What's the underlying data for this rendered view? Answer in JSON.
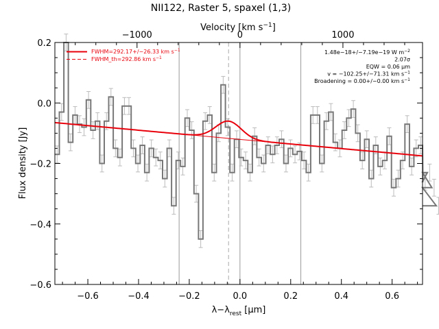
{
  "chart_data": {
    "type": "line",
    "title": "NII122, Raster 5, spaxel (1,3)",
    "xlabel": "λ−λ",
    "xlabel_sub": "rest",
    "xlabel_unit": " [μm]",
    "ylabel": "Flux density [Jy]",
    "top_axis_label": "Velocity [km s",
    "top_axis_label_sup": "−1",
    "top_axis_label_end": "]",
    "xlim": [
      -0.73,
      0.72
    ],
    "ylim": [
      -0.6,
      0.2
    ],
    "x_ticks": [
      -0.6,
      -0.4,
      -0.2,
      0.0,
      0.2,
      0.4,
      0.6
    ],
    "x_tick_labels": [
      "−0.6",
      "−0.4",
      "−0.2",
      "0.0",
      "0.2",
      "0.4",
      "0.6"
    ],
    "y_ticks": [
      -0.6,
      -0.4,
      -0.2,
      0.0,
      0.2
    ],
    "y_tick_labels": [
      "−0.6",
      "−0.4",
      "−0.2",
      "0.0",
      "0.2"
    ],
    "top_ticks_um": [
      -0.406,
      0.0,
      0.406
    ],
    "top_tick_labels": [
      "−1000",
      "0",
      "1000"
    ],
    "vertical_lines": [
      {
        "x": -0.24,
        "style": "solid",
        "color": "#999999"
      },
      {
        "x": -0.045,
        "style": "dashed",
        "color": "#aaaaaa"
      },
      {
        "x": 0.0,
        "style": "solid",
        "color": "#999999"
      },
      {
        "x": 0.24,
        "style": "solid",
        "color": "#999999"
      }
    ],
    "series": [
      {
        "name": "",
        "style": "steps",
        "color": "#777777",
        "x_start": -0.73,
        "x_step": 0.0177,
        "values": [
          -0.17,
          -0.03,
          0.2,
          -0.13,
          -0.04,
          -0.07,
          -0.08,
          0.01,
          -0.09,
          -0.06,
          -0.2,
          -0.06,
          0.02,
          -0.15,
          -0.18,
          -0.01,
          -0.01,
          -0.15,
          -0.2,
          -0.14,
          -0.23,
          -0.15,
          -0.18,
          -0.19,
          -0.25,
          -0.15,
          -0.34,
          -0.19,
          -0.21,
          -0.05,
          -0.09,
          -0.3,
          -0.45,
          -0.06,
          -0.04,
          -0.23,
          -0.1,
          0.06,
          -0.08,
          -0.23,
          -0.12,
          -0.18,
          -0.19,
          -0.23,
          -0.11,
          -0.18,
          -0.2,
          -0.14,
          -0.17,
          -0.14,
          -0.12,
          -0.2,
          -0.15,
          -0.17,
          -0.16,
          -0.19,
          -0.23,
          -0.04,
          -0.04,
          -0.2,
          -0.06,
          -0.03,
          -0.13,
          -0.15,
          -0.09,
          -0.05,
          -0.02,
          -0.1,
          -0.19,
          -0.12,
          -0.25,
          -0.14,
          -0.21,
          -0.19,
          -0.11,
          -0.28,
          -0.25,
          -0.19,
          -0.07,
          -0.21,
          -0.15,
          -0.14,
          -0.26,
          -0.23,
          -0.28,
          -0.34
        ],
        "error": 0.028
      },
      {
        "name": "FWHM=292.17+/−26.33 km s",
        "name_sup": "−1",
        "style": "solid",
        "color": "#e8000b",
        "baseline_start": -0.065,
        "baseline_end": -0.175,
        "gaussian_center": -0.045,
        "gaussian_amp": 0.057,
        "gaussian_sigma": 0.05
      },
      {
        "name": "FWHM_th=292.86 km s",
        "name_sup": "−1",
        "style": "dashed",
        "color": "#e8000b"
      }
    ],
    "annotations": [
      {
        "text": "1.48e−18+/−7.19e−19 W m",
        "sup": "−2"
      },
      {
        "text": "2.07σ",
        "sup": ""
      },
      {
        "text": "EQW = 0.06 μm",
        "sup": ""
      },
      {
        "text": "v = −102.25+/−71.31 km s",
        "sup": "−1"
      },
      {
        "text": "Broadening = 0.00+/−0.00 km s",
        "sup": "−1"
      }
    ],
    "grid": false,
    "legend_position": "top-left"
  }
}
